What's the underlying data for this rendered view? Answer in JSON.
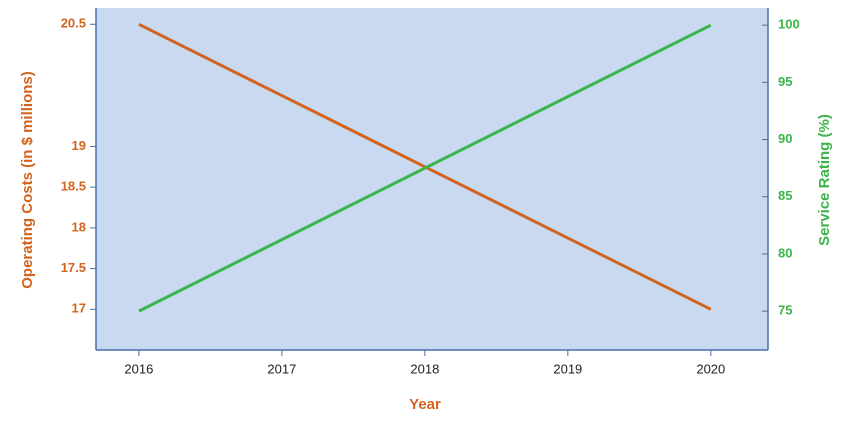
{
  "chart_data": {
    "type": "line",
    "x_label": "Year",
    "y_label": "Operating Costs (in $ millions)",
    "y2_label": "Service Rating (%)",
    "x": [
      2016,
      2017,
      2018,
      2019,
      2020
    ],
    "xlim": [
      2015.7,
      2020.4
    ],
    "xticks": [
      2016,
      2017,
      2018,
      2019,
      2020
    ],
    "ylim": [
      16.5,
      20.7
    ],
    "yticks": [
      17,
      17.5,
      18,
      18.5,
      19,
      20.5
    ],
    "y2lim": [
      71.6,
      101.5
    ],
    "y2ticks": [
      75,
      80,
      85,
      90,
      95,
      100
    ],
    "background": "#c9d9f0",
    "series": [
      {
        "name": "Operating Costs",
        "color": "#d2641e",
        "values": [
          20.5,
          19.625,
          18.75,
          17.875,
          17
        ]
      },
      {
        "name": "Service Rating",
        "color": "#3cb44b",
        "axis": "y2",
        "values": [
          75,
          81.25,
          87.5,
          93.75,
          100
        ]
      }
    ]
  }
}
